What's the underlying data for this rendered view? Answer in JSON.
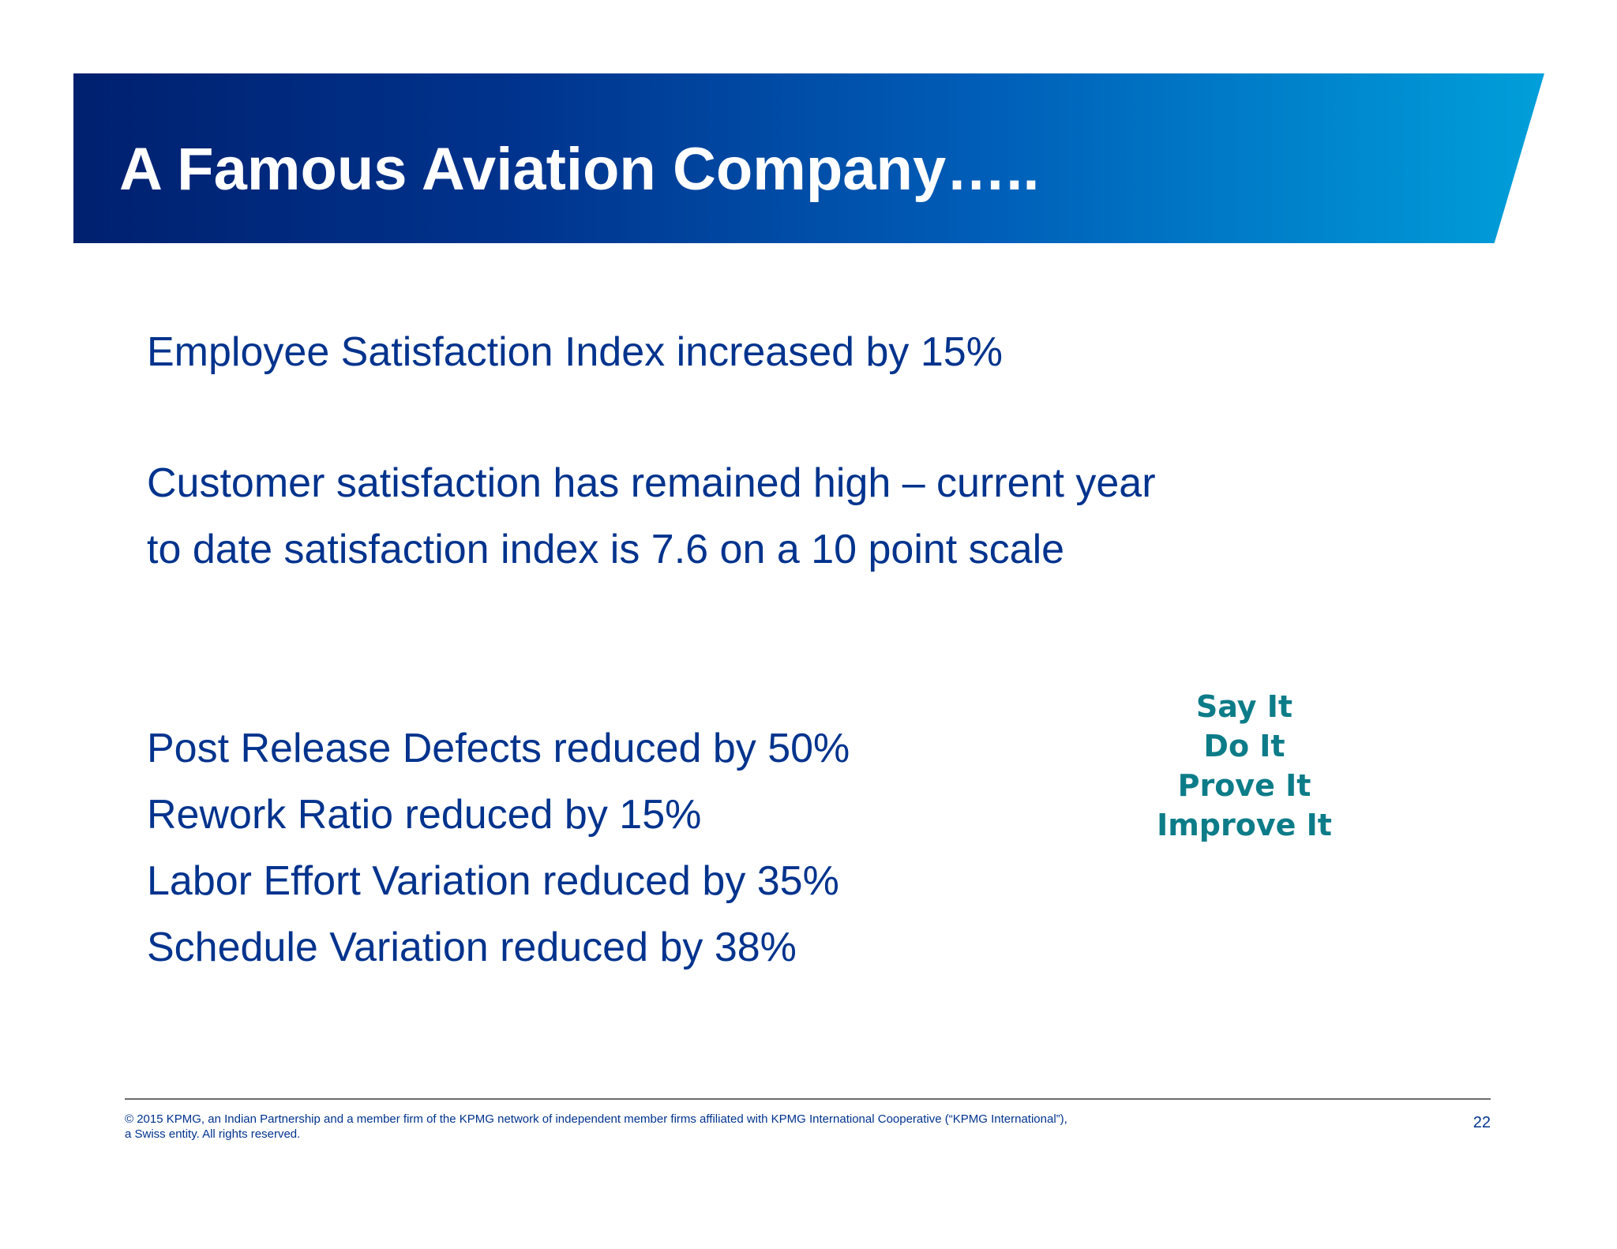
{
  "slide": {
    "title": "A Famous Aviation Company…..",
    "metrics": {
      "employee_satisfaction": "Employee Satisfaction Index increased by 15%",
      "customer_satisfaction_line1": "Customer satisfaction has remained high – current year",
      "customer_satisfaction_line2": "to date satisfaction index is 7.6 on a 10 point scale",
      "post_release_defects": "Post Release Defects reduced by 50%",
      "rework_ratio": "Rework Ratio reduced by 15%",
      "labor_effort_variation": "Labor Effort Variation reduced by 35%",
      "schedule_variation": "Schedule Variation reduced by 38%"
    },
    "motto": [
      "Say It",
      "Do It",
      "Prove It",
      "Improve It"
    ],
    "footer": {
      "copyright": "© 2015 KPMG, an Indian Partnership and a member firm of the KPMG network of independent member firms affiliated with KPMG International Cooperative (“KPMG International”), a Swiss entity. All rights reserved.",
      "page_number": "22"
    },
    "colors": {
      "title_band_dark": "#00206f",
      "title_band_light": "#009fda",
      "body_text": "#00338d",
      "motto_text": "#0c7c88"
    }
  }
}
